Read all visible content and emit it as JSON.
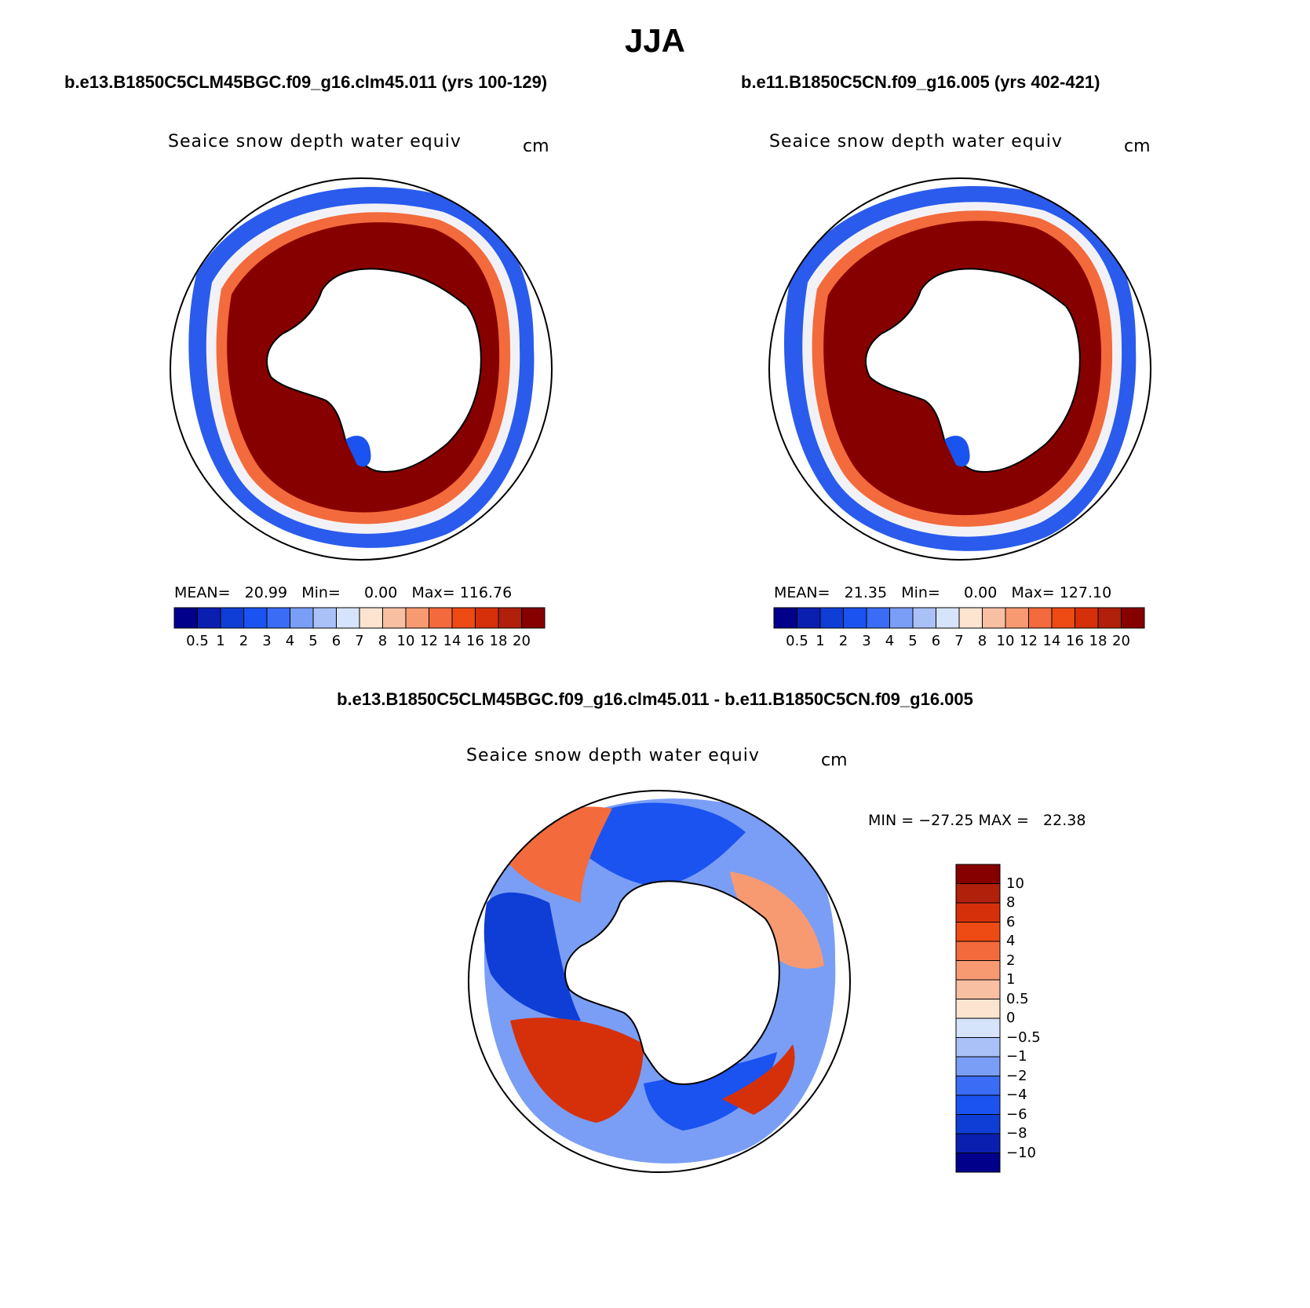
{
  "title": "JJA",
  "panels": [
    {
      "case": "b.e13.B1850C5CLM45BGC.f09_g16.clm45.011 (yrs 100-129)",
      "variable": "Seaice snow depth water equiv",
      "units": "cm",
      "stats": {
        "mean_label": "MEAN=",
        "mean": "20.99",
        "min_label": "Min=",
        "min": "0.00",
        "max_label": "Max=",
        "max": "116.76"
      }
    },
    {
      "case": "b.e11.B1850C5CN.f09_g16.005 (yrs 402-421)",
      "variable": "Seaice snow depth water equiv",
      "units": "cm",
      "stats": {
        "mean_label": "MEAN=",
        "mean": "21.35",
        "min_label": "Min=",
        "min": "0.00",
        "max_label": "Max=",
        "max": "127.10"
      }
    }
  ],
  "difference": {
    "case": "b.e13.B1850C5CLM45BGC.f09_g16.clm45.011 - b.e11.B1850C5CN.f09_g16.005",
    "variable": "Seaice snow depth water equiv",
    "units": "cm",
    "range_text": "MIN = −27.25 MAX =   22.38"
  },
  "colorbar_levels": [
    "0.5",
    "1",
    "2",
    "3",
    "4",
    "5",
    "6",
    "7",
    "8",
    "10",
    "12",
    "14",
    "16",
    "18",
    "20"
  ],
  "colorbar_colors": [
    "#00008b",
    "#0a1fb0",
    "#0f3ed6",
    "#1a53f0",
    "#3a6cf5",
    "#7a9ef5",
    "#a9c1f7",
    "#d6e4fb",
    "#fde4d0",
    "#f9bfa3",
    "#f79a72",
    "#f36a3c",
    "#ee4a14",
    "#d6300a",
    "#b0200a",
    "#870000"
  ],
  "diff_levels": [
    "10",
    "8",
    "6",
    "4",
    "2",
    "1",
    "0.5",
    "0",
    "−0.5",
    "−1",
    "−2",
    "−4",
    "−6",
    "−8",
    "−10"
  ],
  "diff_colors": [
    "#870000",
    "#b0200a",
    "#d6300a",
    "#ee4a14",
    "#f36a3c",
    "#f79a72",
    "#f9bfa3",
    "#fde4d0",
    "#d6e4fb",
    "#a9c1f7",
    "#7a9ef5",
    "#3a6cf5",
    "#1a53f0",
    "#0f3ed6",
    "#0a1fb0",
    "#00008b"
  ],
  "map": {
    "projection": "south polar stereographic",
    "ocean_fill": "sea-ice snow field",
    "land": "Antarctica (white, black coastline)"
  }
}
